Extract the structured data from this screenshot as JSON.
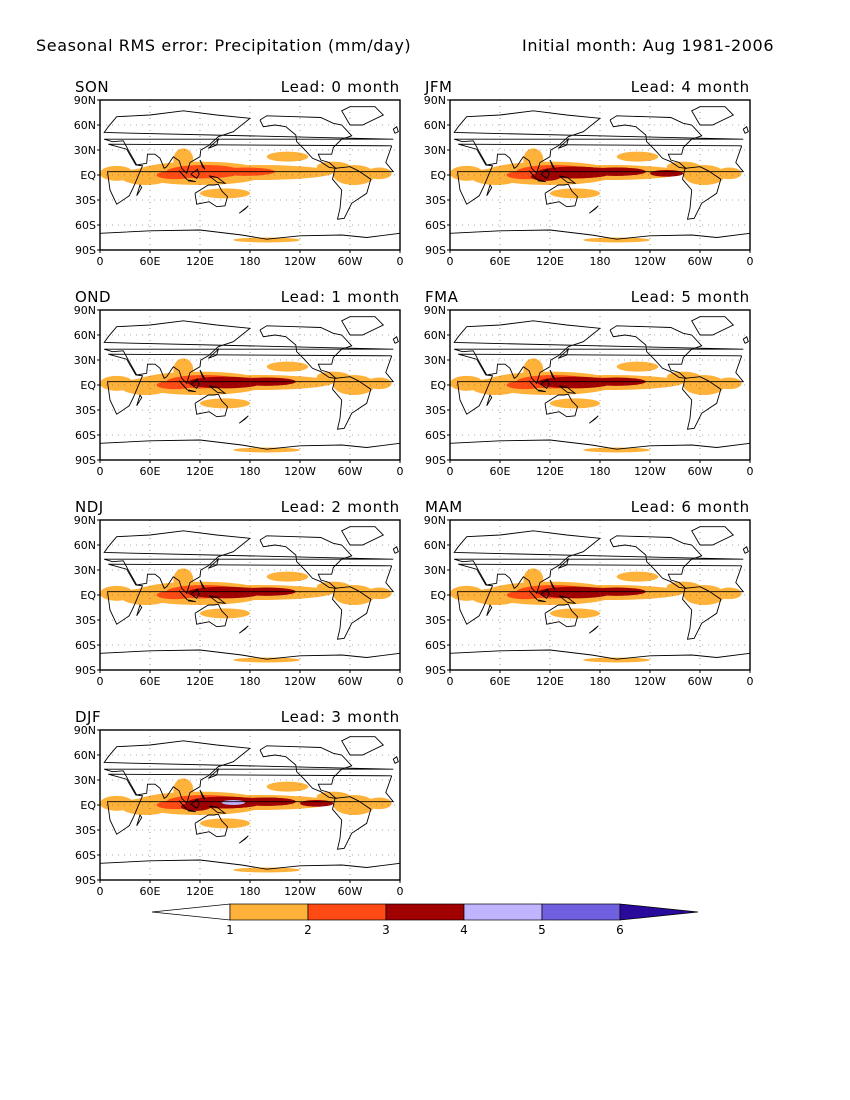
{
  "header": {
    "title": "Seasonal RMS error: Precipitation (mm/day)",
    "initial": "Initial month: Aug 1981-2006"
  },
  "panels": [
    {
      "season": "SON",
      "lead": "Lead: 0 month",
      "intensity": 1
    },
    {
      "season": "JFM",
      "lead": "Lead: 4 month",
      "intensity": 3
    },
    {
      "season": "OND",
      "lead": "Lead: 1 month",
      "intensity": 2
    },
    {
      "season": "FMA",
      "lead": "Lead: 5 month",
      "intensity": 2
    },
    {
      "season": "NDJ",
      "lead": "Lead: 2 month",
      "intensity": 2
    },
    {
      "season": "MAM",
      "lead": "Lead: 6 month",
      "intensity": 2
    },
    {
      "season": "DJF",
      "lead": "Lead: 3 month",
      "intensity": 4
    }
  ],
  "axes": {
    "lat_labels": [
      "90N",
      "60N",
      "30N",
      "EQ",
      "30S",
      "60S",
      "90S"
    ],
    "lon_labels": [
      "0",
      "60E",
      "120E",
      "180",
      "120W",
      "60W",
      "0"
    ]
  },
  "colorbar": {
    "labels": [
      "1",
      "2",
      "3",
      "4",
      "5",
      "6"
    ],
    "colors": [
      "#ffffff",
      "#ffb23a",
      "#ff4a14",
      "#a00000",
      "#c0b4ff",
      "#7060e0",
      "#2a0a9a"
    ]
  },
  "chart_data": {
    "type": "heatmap",
    "title": "Seasonal RMS error: Precipitation (mm/day)",
    "variable": "Precipitation RMS error",
    "units": "mm/day",
    "levels": [
      1,
      2,
      3,
      4,
      5,
      6
    ],
    "xlim": [
      0,
      360
    ],
    "ylim": [
      -90,
      90
    ]
  }
}
